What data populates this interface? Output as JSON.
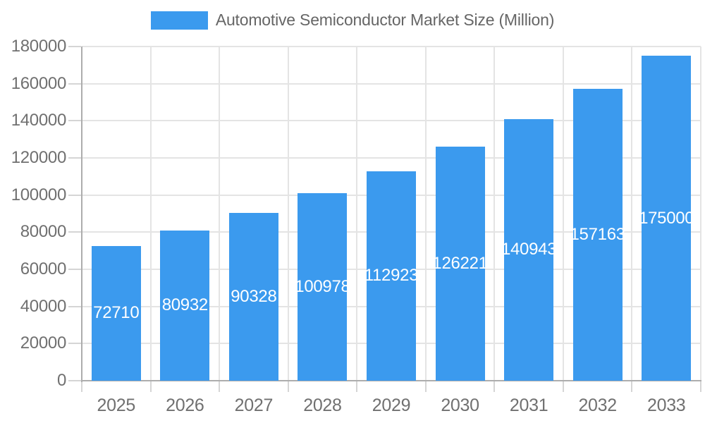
{
  "chart_data": {
    "type": "bar",
    "title": "Automotive Semiconductor Market Size (Million)",
    "legend": {
      "position": "top",
      "entries": [
        "Automotive Semiconductor Market Size (Million)"
      ]
    },
    "categories": [
      "2025",
      "2026",
      "2027",
      "2028",
      "2029",
      "2030",
      "2031",
      "2032",
      "2033"
    ],
    "values": [
      72710,
      80932,
      90328,
      100978,
      112923,
      126221,
      140943,
      157163,
      175000
    ],
    "value_labels_shown": true,
    "xlabel": "",
    "ylabel": "",
    "ylim": [
      0,
      180000
    ],
    "ytick_step": 20000,
    "yticks": [
      0,
      20000,
      40000,
      60000,
      80000,
      100000,
      120000,
      140000,
      160000,
      180000
    ],
    "grid": true,
    "colors": {
      "bar": "#3b9aee",
      "bar_value_text": "#ffffff",
      "legend_text": "#666666",
      "axis_text": "#707070",
      "gridline": "#e4e4e4",
      "tick": "#d5d5d5",
      "axis_line": "#adadad",
      "background": "#ffffff"
    }
  }
}
